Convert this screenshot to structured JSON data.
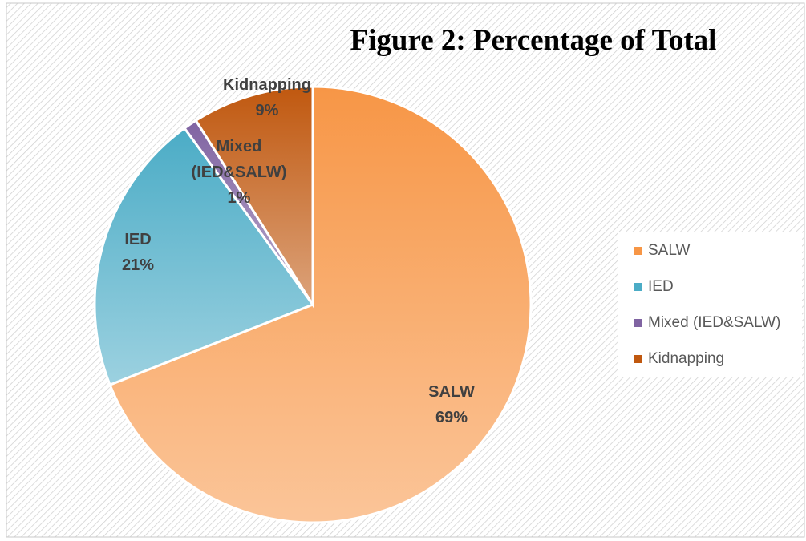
{
  "chart_data": {
    "type": "pie",
    "title": "Figure 2: Percentage of Total",
    "categories": [
      "SALW",
      "IED",
      "Mixed (IED&SALW)",
      "Kidnapping"
    ],
    "values": [
      69,
      21,
      1,
      9
    ],
    "value_labels": [
      "69%",
      "21%",
      "1%",
      "9%"
    ],
    "colors": [
      "#f79646",
      "#4bacc6",
      "#8064a2",
      "#c0580f"
    ],
    "legend": "right"
  }
}
